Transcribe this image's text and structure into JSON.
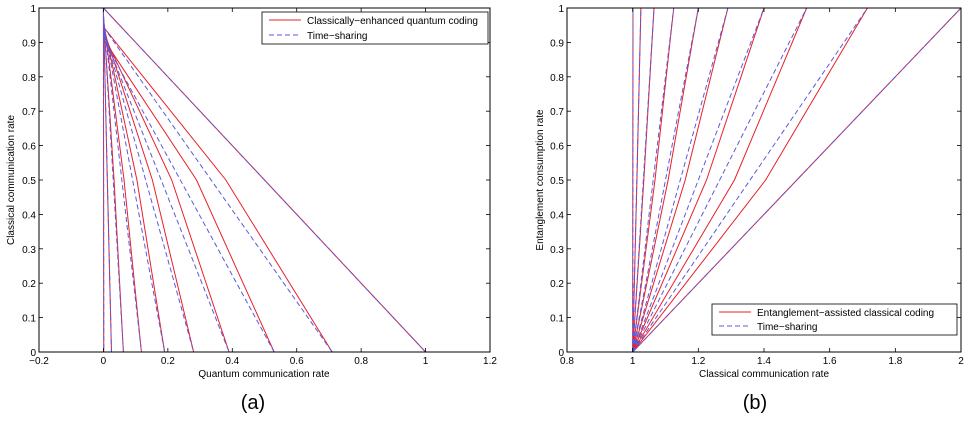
{
  "chart_data": [
    {
      "type": "line",
      "panel_label": "(a)",
      "xlabel": "Quantum communication rate",
      "ylabel": "Classical communication rate",
      "xlim": [
        -0.2,
        1.2
      ],
      "ylim": [
        0,
        1
      ],
      "xticks": [
        -0.2,
        0,
        0.2,
        0.4,
        0.6,
        0.8,
        1,
        1.2
      ],
      "xtick_labels": [
        "−0.2",
        "0",
        "0.2",
        "0.4",
        "0.6",
        "0.8",
        "1",
        "1.2"
      ],
      "yticks": [
        0,
        0.1,
        0.2,
        0.3,
        0.4,
        0.5,
        0.6,
        0.7,
        0.8,
        0.9,
        1
      ],
      "ytick_labels": [
        "0",
        "0.1",
        "0.2",
        "0.3",
        "0.4",
        "0.5",
        "0.6",
        "0.7",
        "0.8",
        "0.9",
        "1"
      ],
      "grid": false,
      "legend_position": "top-right",
      "series": [
        {
          "name": "Classically−enhanced quantum coding",
          "color": "#e8202a",
          "dash": "solid",
          "curves": [
            {
              "x": [
                0,
                0.0005,
                0.001
              ],
              "y": [
                1,
                0.5,
                0
              ]
            },
            {
              "x": [
                0,
                0.012,
                0.025
              ],
              "y": [
                0.99,
                0.5,
                0
              ]
            },
            {
              "x": [
                0,
                0.033,
                0.062
              ],
              "y": [
                0.98,
                0.5,
                0
              ]
            },
            {
              "x": [
                0,
                0.064,
                0.118
              ],
              "y": [
                0.97,
                0.5,
                0
              ]
            },
            {
              "x": [
                0,
                0.104,
                0.19
              ],
              "y": [
                0.955,
                0.5,
                0
              ]
            },
            {
              "x": [
                0,
                0.152,
                0.28
              ],
              "y": [
                0.94,
                0.5,
                0
              ]
            },
            {
              "x": [
                0,
                0.212,
                0.39
              ],
              "y": [
                0.925,
                0.5,
                0
              ]
            },
            {
              "x": [
                0,
                0.289,
                0.53
              ],
              "y": [
                0.91,
                0.5,
                0
              ]
            },
            {
              "x": [
                0,
                0.38,
                0.71
              ],
              "y": [
                0.945,
                0.5,
                0
              ]
            },
            {
              "x": [
                0,
                0.5,
                1
              ],
              "y": [
                1,
                0.5,
                0
              ]
            }
          ]
        },
        {
          "name": "Time−sharing",
          "color": "#5a5adc",
          "dash": "dashed",
          "curves": [
            {
              "x": [
                0,
                0.001
              ],
              "y": [
                1,
                0
              ]
            },
            {
              "x": [
                0,
                0.025
              ],
              "y": [
                0.99,
                0
              ]
            },
            {
              "x": [
                0,
                0.062
              ],
              "y": [
                0.98,
                0
              ]
            },
            {
              "x": [
                0,
                0.118
              ],
              "y": [
                0.97,
                0
              ]
            },
            {
              "x": [
                0,
                0.19
              ],
              "y": [
                0.955,
                0
              ]
            },
            {
              "x": [
                0,
                0.28
              ],
              "y": [
                0.94,
                0
              ]
            },
            {
              "x": [
                0,
                0.39
              ],
              "y": [
                0.925,
                0
              ]
            },
            {
              "x": [
                0,
                0.53
              ],
              "y": [
                0.91,
                0
              ]
            },
            {
              "x": [
                0,
                0.71
              ],
              "y": [
                0.945,
                0
              ]
            },
            {
              "x": [
                0,
                1
              ],
              "y": [
                1,
                0
              ]
            }
          ]
        }
      ]
    },
    {
      "type": "line",
      "panel_label": "(b)",
      "xlabel": "Classical communication rate",
      "ylabel": "Entanglement consumption rate",
      "xlim": [
        0.8,
        2
      ],
      "ylim": [
        0,
        1
      ],
      "xticks": [
        0.8,
        1,
        1.2,
        1.4,
        1.6,
        1.8,
        2
      ],
      "xtick_labels": [
        "0.8",
        "1",
        "1.2",
        "1.4",
        "1.6",
        "1.8",
        "2"
      ],
      "yticks": [
        0,
        0.1,
        0.2,
        0.3,
        0.4,
        0.5,
        0.6,
        0.7,
        0.8,
        0.9,
        1
      ],
      "ytick_labels": [
        "0",
        "0.1",
        "0.2",
        "0.3",
        "0.4",
        "0.5",
        "0.6",
        "0.7",
        "0.8",
        "0.9",
        "1"
      ],
      "grid": false,
      "legend_position": "bottom-right",
      "series": [
        {
          "name": "Entanglement−assisted classical coding",
          "color": "#e8202a",
          "dash": "solid",
          "curves": [
            {
              "x": [
                1,
                1.0005,
                1.001
              ],
              "y": [
                0,
                0.5,
                1
              ]
            },
            {
              "x": [
                1.0,
                1.013,
                1.025
              ],
              "y": [
                0,
                0.5,
                1
              ]
            },
            {
              "x": [
                1.0,
                1.034,
                1.065
              ],
              "y": [
                0,
                0.5,
                1
              ]
            },
            {
              "x": [
                1.0,
                1.068,
                1.125
              ],
              "y": [
                0,
                0.5,
                1
              ]
            },
            {
              "x": [
                1.0,
                1.108,
                1.2
              ],
              "y": [
                0,
                0.5,
                1
              ]
            },
            {
              "x": [
                1.0,
                1.16,
                1.29
              ],
              "y": [
                0,
                0.5,
                1
              ]
            },
            {
              "x": [
                1.0,
                1.225,
                1.4
              ],
              "y": [
                0,
                0.5,
                1
              ]
            },
            {
              "x": [
                1.0,
                1.31,
                1.53
              ],
              "y": [
                0,
                0.5,
                1
              ]
            },
            {
              "x": [
                1.0,
                1.405,
                1.715
              ],
              "y": [
                0,
                0.5,
                1
              ]
            },
            {
              "x": [
                1.0,
                1.5,
                2.0
              ],
              "y": [
                0,
                0.5,
                1
              ]
            }
          ]
        },
        {
          "name": "Time−sharing",
          "color": "#5a5adc",
          "dash": "dashed",
          "curves": [
            {
              "x": [
                1,
                1.001
              ],
              "y": [
                0,
                1
              ]
            },
            {
              "x": [
                1.0,
                1.025
              ],
              "y": [
                0,
                1
              ]
            },
            {
              "x": [
                1.0,
                1.065
              ],
              "y": [
                0,
                1
              ]
            },
            {
              "x": [
                1.0,
                1.125
              ],
              "y": [
                0,
                1
              ]
            },
            {
              "x": [
                1.0,
                1.2
              ],
              "y": [
                0,
                1
              ]
            },
            {
              "x": [
                1.0,
                1.29
              ],
              "y": [
                0,
                1
              ]
            },
            {
              "x": [
                1.0,
                1.4
              ],
              "y": [
                0,
                1
              ]
            },
            {
              "x": [
                1.0,
                1.53
              ],
              "y": [
                0,
                1
              ]
            },
            {
              "x": [
                1.0,
                1.715
              ],
              "y": [
                0,
                1
              ]
            },
            {
              "x": [
                1.0,
                2.0
              ],
              "y": [
                0,
                1
              ]
            }
          ]
        }
      ]
    }
  ]
}
